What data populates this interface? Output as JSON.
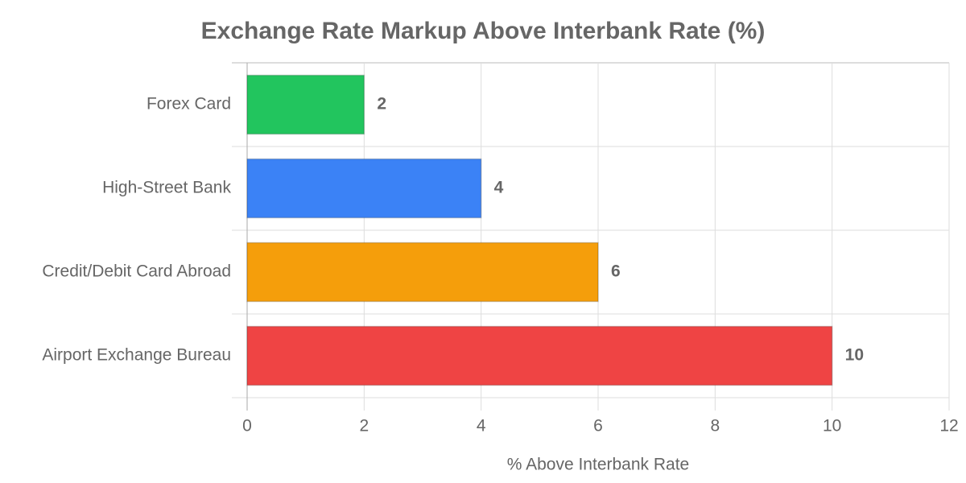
{
  "chart_data": {
    "type": "hbar",
    "title": "Exchange Rate Markup Above Interbank Rate (%)",
    "x_label": "% Above Interbank Rate",
    "categories": [
      "Forex Card",
      "High-Street Bank",
      "Credit/Debit Card Abroad",
      "Airport Exchange Bureau"
    ],
    "values": [
      2,
      4,
      6,
      10
    ],
    "colors": [
      "#22c55e",
      "#3b82f6",
      "#f59e0b",
      "#ef4444"
    ],
    "xlim": [
      0,
      12
    ],
    "xticks": [
      0,
      2,
      4,
      6,
      8,
      10,
      12
    ],
    "grid": true
  }
}
